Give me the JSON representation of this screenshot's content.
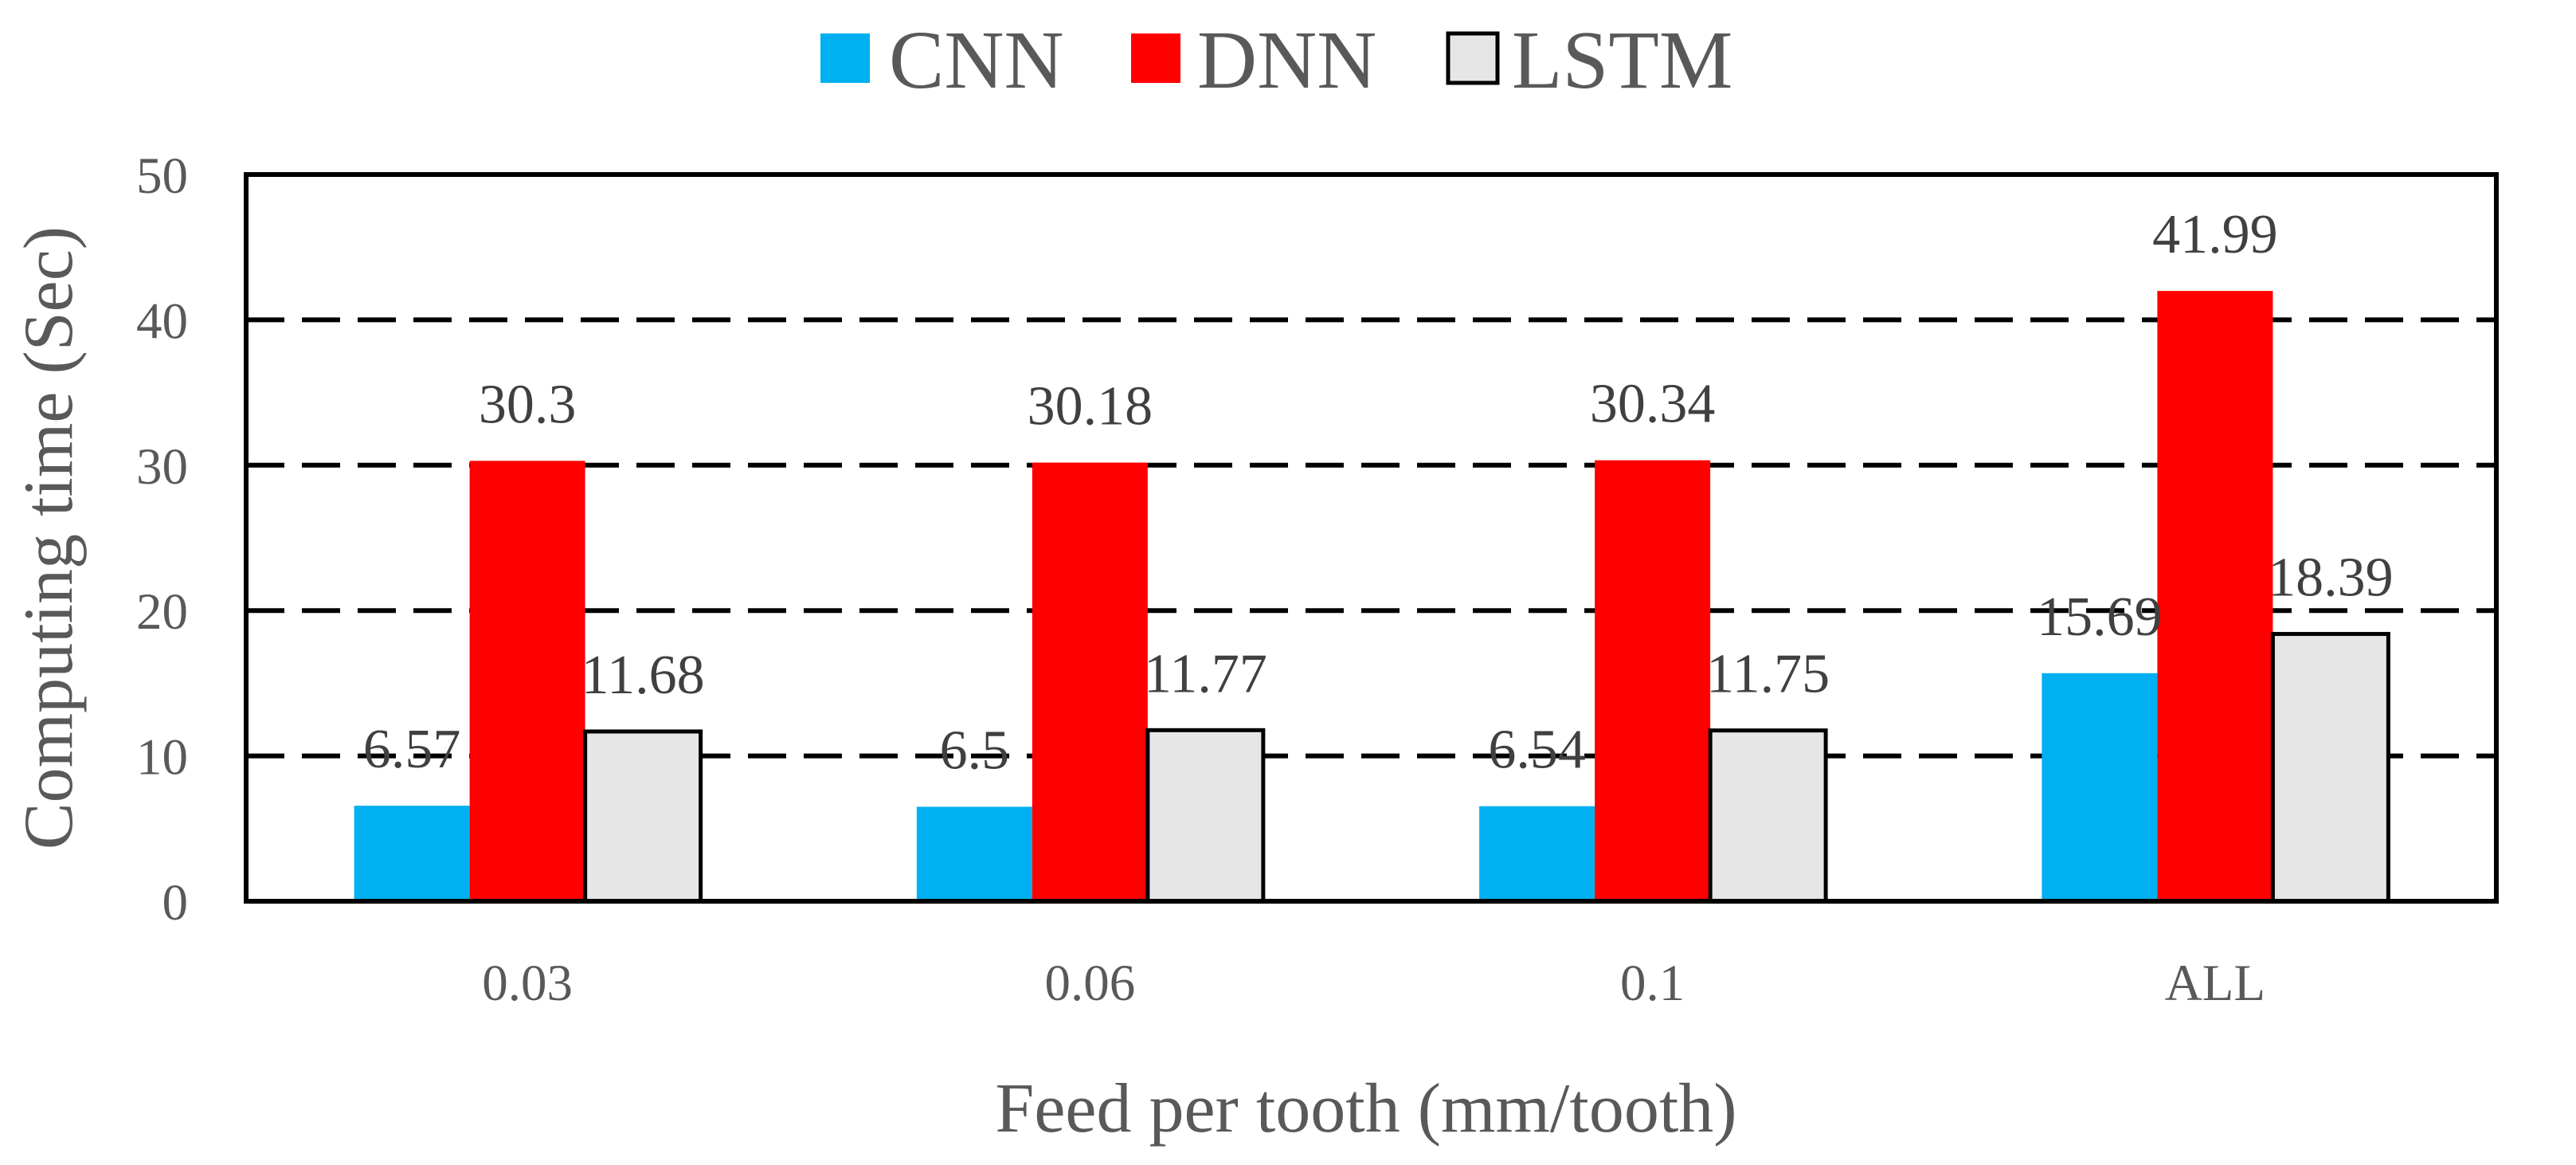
{
  "chart_data": {
    "type": "bar",
    "title": "",
    "categories": [
      "0.03",
      "0.06",
      "0.1",
      "ALL"
    ],
    "series": [
      {
        "name": "CNN",
        "values": [
          6.57,
          6.5,
          6.54,
          15.69
        ],
        "labels": [
          "6.57",
          "6.5",
          "6.54",
          "15.69"
        ],
        "color": "#00B0F0"
      },
      {
        "name": "DNN",
        "values": [
          30.3,
          30.18,
          30.34,
          41.99
        ],
        "labels": [
          "30.3",
          "30.18",
          "30.34",
          "41.99"
        ],
        "color": "#FF0000"
      },
      {
        "name": "LSTM",
        "values": [
          11.68,
          11.77,
          11.75,
          18.39
        ],
        "labels": [
          "11.68",
          "11.77",
          "11.75",
          "18.39"
        ],
        "color": "#E7E6E6"
      }
    ],
    "xlabel": "Feed per tooth (mm/tooth)",
    "ylabel": "Computing time (Sec)",
    "ylim": [
      0,
      50
    ],
    "yticks": [
      "0",
      "10",
      "20",
      "30",
      "40",
      "50"
    ],
    "grid": "dashed-horizontal",
    "legend": "top-center"
  }
}
